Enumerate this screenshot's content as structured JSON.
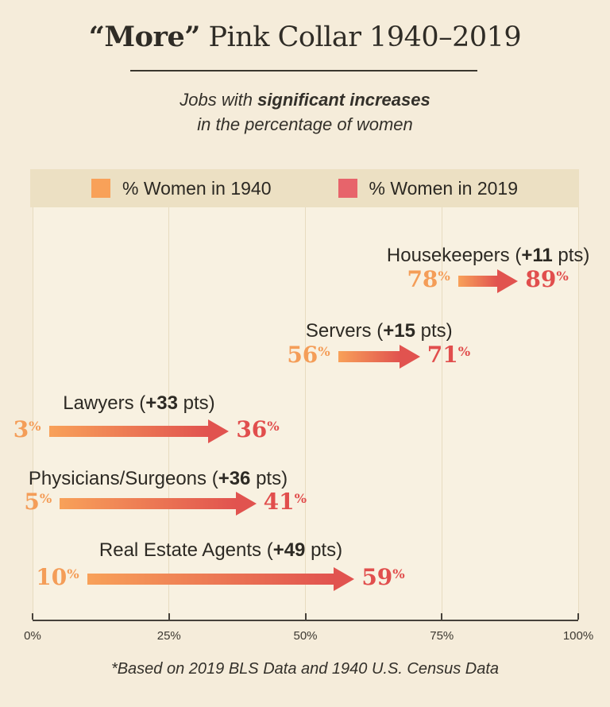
{
  "header": {
    "title_quoted": "“More”",
    "title_rest": " Pink Collar 1940–2019",
    "subtitle_prefix": "Jobs with ",
    "subtitle_bold": "significant increases",
    "subtitle_line2": "in the percentage of women"
  },
  "legend": [
    {
      "label": "% Women in 1940",
      "color": "#f8a159"
    },
    {
      "label": "% Women in 2019",
      "color": "#e7646b"
    }
  ],
  "chart_data": {
    "type": "bar",
    "subtype": "dumbbell-arrow",
    "title": "“More” Pink Collar 1940–2019",
    "subtitle": "Jobs with significant increases in the percentage of women",
    "categories": [
      "Housekeepers",
      "Servers",
      "Lawyers",
      "Physicians/Surgeons",
      "Real Estate Agents"
    ],
    "series": [
      {
        "name": "% Women in 1940",
        "values": [
          78,
          56,
          3,
          5,
          10
        ]
      },
      {
        "name": "% Women in 2019",
        "values": [
          89,
          71,
          36,
          41,
          59
        ]
      }
    ],
    "delta_labels": [
      "+11",
      "+15",
      "+33",
      "+36",
      "+49"
    ],
    "pts_text": "pts",
    "xlim": [
      0,
      100
    ],
    "x_tick_labels": [
      "0%",
      "25%",
      "50%",
      "75%",
      "100%"
    ],
    "grid": true,
    "legend_position": "top",
    "footnote": "*Based on 2019 BLS Data and 1940 U.S. Census Data",
    "colors": {
      "arrow_gradient_start": "#f8a159",
      "arrow_gradient_end": "#e1534f",
      "value_1940": "#f49d58",
      "value_2019": "#e14e4d"
    }
  }
}
